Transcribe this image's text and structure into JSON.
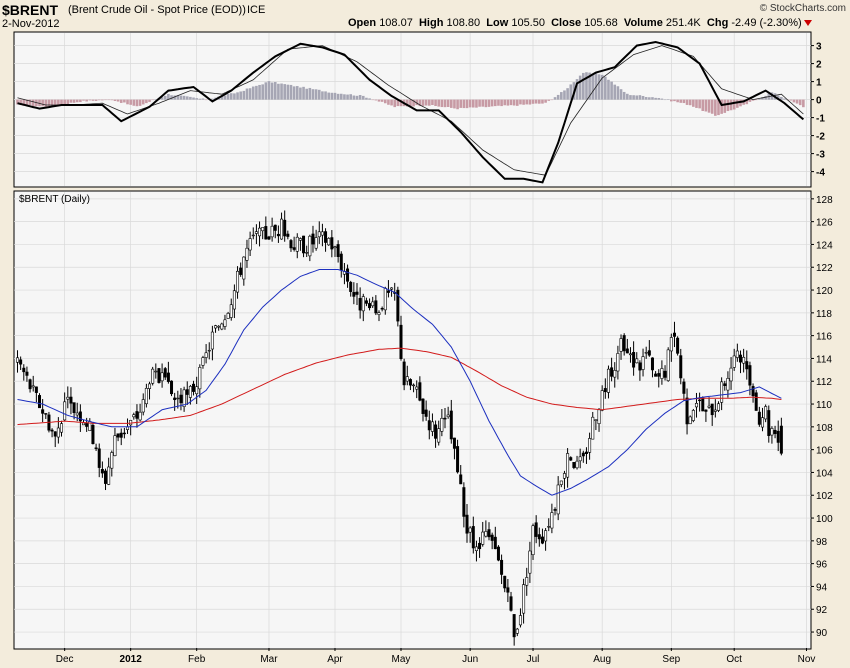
{
  "header": {
    "symbol": "$BRENT",
    "description": "(Brent Crude Oil - Spot Price (EOD))",
    "exchange": "ICE",
    "source": "© StockCharts.com",
    "date": "2-Nov-2012",
    "open_label": "Open",
    "open": "108.07",
    "high_label": "High",
    "high": "108.80",
    "low_label": "Low",
    "low": "105.50",
    "close_label": "Close",
    "close": "105.68",
    "volume_label": "Volume",
    "volume": "251.4K",
    "chg_label": "Chg",
    "chg": "-2.49 (-2.30%)",
    "down_marker_color": "#cc0000"
  },
  "price_panel_label": "$BRENT (Daily)",
  "colors": {
    "background": "#f3ecdc",
    "plot_bg": "#f6f6f6",
    "grid": "#d9d9d9",
    "ma_short": "#1c2fbf",
    "ma_long": "#d21a1a",
    "hist_pos": "#a6a6b4",
    "hist_neg": "#c79aa4"
  },
  "chart_data": [
    {
      "type": "line",
      "panel": "indicator",
      "ylim": [
        -4.8,
        3.7
      ],
      "yticks": [
        3,
        2,
        1,
        0,
        -1,
        -2,
        -3,
        -4
      ],
      "series": [
        {
          "role": "line",
          "anchors": [
            [
              0,
              -0.2
            ],
            [
              7,
              -0.5
            ],
            [
              14,
              -0.3
            ],
            [
              20,
              -0.3
            ],
            [
              27,
              -0.3
            ],
            [
              33,
              -1.2
            ],
            [
              42,
              -0.4
            ],
            [
              48,
              0.5
            ],
            [
              56,
              0.7
            ],
            [
              62,
              -0.1
            ],
            [
              68,
              0.5
            ],
            [
              75,
              1.5
            ],
            [
              82,
              2.4
            ],
            [
              90,
              3.1
            ],
            [
              97,
              2.9
            ],
            [
              104,
              2.5
            ],
            [
              112,
              1.1
            ],
            [
              119,
              0.2
            ],
            [
              127,
              -0.6
            ],
            [
              134,
              -0.6
            ],
            [
              141,
              -1.8
            ],
            [
              148,
              -3.2
            ],
            [
              155,
              -4.4
            ],
            [
              161,
              -4.4
            ],
            [
              167,
              -4.6
            ],
            [
              172,
              -2.4
            ],
            [
              178,
              0.9
            ],
            [
              184,
              1.5
            ],
            [
              190,
              1.8
            ],
            [
              197,
              3.0
            ],
            [
              203,
              3.2
            ],
            [
              210,
              2.9
            ],
            [
              217,
              2.0
            ],
            [
              224,
              -0.3
            ],
            [
              231,
              -0.1
            ],
            [
              238,
              0.5
            ],
            [
              244,
              -0.2
            ],
            [
              250,
              -1.1
            ]
          ]
        },
        {
          "role": "signal",
          "anchors": [
            [
              0,
              0.1
            ],
            [
              9,
              -0.3
            ],
            [
              18,
              -0.3
            ],
            [
              27,
              -0.2
            ],
            [
              35,
              -0.8
            ],
            [
              45,
              -0.2
            ],
            [
              55,
              0.5
            ],
            [
              65,
              0.3
            ],
            [
              75,
              1.1
            ],
            [
              86,
              2.8
            ],
            [
              97,
              3.0
            ],
            [
              108,
              2.1
            ],
            [
              118,
              0.8
            ],
            [
              128,
              -0.3
            ],
            [
              138,
              -1.2
            ],
            [
              148,
              -2.8
            ],
            [
              158,
              -3.9
            ],
            [
              168,
              -4.2
            ],
            [
              176,
              -1.3
            ],
            [
              186,
              1.2
            ],
            [
              196,
              2.5
            ],
            [
              205,
              3.0
            ],
            [
              215,
              2.4
            ],
            [
              224,
              0.6
            ],
            [
              234,
              0.0
            ],
            [
              243,
              0.3
            ],
            [
              250,
              -0.8
            ]
          ]
        },
        {
          "role": "histogram",
          "anchors": [
            [
              0,
              -0.3
            ],
            [
              10,
              -0.4
            ],
            [
              20,
              -0.1
            ],
            [
              30,
              0.0
            ],
            [
              38,
              -0.4
            ],
            [
              48,
              0.3
            ],
            [
              60,
              0.0
            ],
            [
              70,
              0.4
            ],
            [
              80,
              1.0
            ],
            [
              90,
              0.7
            ],
            [
              100,
              0.4
            ],
            [
              110,
              0.2
            ],
            [
              120,
              -0.4
            ],
            [
              130,
              -0.3
            ],
            [
              140,
              -0.5
            ],
            [
              150,
              -0.4
            ],
            [
              160,
              -0.3
            ],
            [
              168,
              -0.2
            ],
            [
              174,
              0.5
            ],
            [
              180,
              1.5
            ],
            [
              186,
              1.4
            ],
            [
              194,
              0.3
            ],
            [
              204,
              0.1
            ],
            [
              214,
              -0.3
            ],
            [
              222,
              -0.9
            ],
            [
              230,
              -0.4
            ],
            [
              240,
              0.4
            ],
            [
              250,
              -0.4
            ]
          ]
        }
      ]
    },
    {
      "type": "candlestick",
      "panel": "price",
      "title": "$BRENT (Daily)",
      "ylim": [
        88.6,
        128.6
      ],
      "yticks": [
        128,
        126,
        124,
        122,
        120,
        118,
        116,
        114,
        112,
        110,
        108,
        106,
        104,
        102,
        100,
        98,
        96,
        94,
        92,
        90
      ],
      "xticks": [
        {
          "i": 15,
          "label": "Dec"
        },
        {
          "i": 36,
          "label": "2012"
        },
        {
          "i": 57,
          "label": "Feb"
        },
        {
          "i": 80,
          "label": "Mar"
        },
        {
          "i": 101,
          "label": "Apr"
        },
        {
          "i": 122,
          "label": "May"
        },
        {
          "i": 144,
          "label": "Jun"
        },
        {
          "i": 164,
          "label": "Jul"
        },
        {
          "i": 186,
          "label": "Aug"
        },
        {
          "i": 208,
          "label": "Sep"
        },
        {
          "i": 228,
          "label": "Oct"
        },
        {
          "i": 251,
          "label": "Nov"
        }
      ],
      "close_anchors": [
        [
          0,
          114.0
        ],
        [
          5,
          111.0
        ],
        [
          9,
          109.0
        ],
        [
          12,
          107.0
        ],
        [
          15,
          110.0
        ],
        [
          19,
          109.5
        ],
        [
          22,
          108.5
        ],
        [
          25,
          106.5
        ],
        [
          26,
          104.0
        ],
        [
          28,
          103.5
        ],
        [
          31,
          107.0
        ],
        [
          35,
          108.0
        ],
        [
          38,
          109.0
        ],
        [
          40,
          110.0
        ],
        [
          42,
          112.5
        ],
        [
          46,
          112.0
        ],
        [
          50,
          110.5
        ],
        [
          54,
          110.5
        ],
        [
          58,
          112.5
        ],
        [
          62,
          116.0
        ],
        [
          66,
          118.0
        ],
        [
          69,
          120.0
        ],
        [
          72,
          123.0
        ],
        [
          75,
          124.5
        ],
        [
          80,
          125.0
        ],
        [
          84,
          125.5
        ],
        [
          88,
          124.0
        ],
        [
          92,
          124.0
        ],
        [
          96,
          124.5
        ],
        [
          99,
          124.5
        ],
        [
          102,
          123.0
        ],
        [
          105,
          121.0
        ],
        [
          108,
          119.0
        ],
        [
          111,
          118.5
        ],
        [
          114,
          118.0
        ],
        [
          117,
          119.5
        ],
        [
          120,
          119.5
        ],
        [
          121,
          117.0
        ],
        [
          123,
          112.0
        ],
        [
          126,
          111.5
        ],
        [
          130,
          109.0
        ],
        [
          133,
          107.5
        ],
        [
          137,
          108.5
        ],
        [
          140,
          104.0
        ],
        [
          143,
          99.0
        ],
        [
          146,
          97.0
        ],
        [
          149,
          98.5
        ],
        [
          152,
          97.0
        ],
        [
          155,
          94.0
        ],
        [
          157,
          91.5
        ],
        [
          158,
          89.5
        ],
        [
          160,
          92.0
        ],
        [
          162,
          95.5
        ],
        [
          164,
          99.0
        ],
        [
          167,
          98.5
        ],
        [
          170,
          100.5
        ],
        [
          173,
          103.0
        ],
        [
          175,
          106.0
        ],
        [
          178,
          104.5
        ],
        [
          180,
          105.0
        ],
        [
          183,
          108.5
        ],
        [
          186,
          111.0
        ],
        [
          189,
          113.0
        ],
        [
          192,
          115.0
        ],
        [
          195,
          114.0
        ],
        [
          198,
          113.5
        ],
        [
          200,
          114.5
        ],
        [
          203,
          112.0
        ],
        [
          206,
          113.0
        ],
        [
          209,
          116.5
        ],
        [
          211,
          112.5
        ],
        [
          213,
          109.0
        ],
        [
          216,
          110.5
        ],
        [
          219,
          109.0
        ],
        [
          222,
          110.0
        ],
        [
          225,
          112.0
        ],
        [
          228,
          114.0
        ],
        [
          230,
          114.0
        ],
        [
          233,
          112.0
        ],
        [
          234,
          110.0
        ],
        [
          236,
          109.0
        ],
        [
          238,
          109.5
        ],
        [
          239,
          107.8
        ],
        [
          241,
          108.07
        ],
        [
          243,
          105.68
        ]
      ],
      "last_candle": {
        "open": 108.07,
        "high": 108.8,
        "low": 105.5,
        "close": 105.68
      },
      "series": [
        {
          "role": "ma_short",
          "anchors": [
            [
              0,
              110.4
            ],
            [
              8,
              110.0
            ],
            [
              16,
              109.0
            ],
            [
              24,
              108.4
            ],
            [
              30,
              108.0
            ],
            [
              38,
              108.0
            ],
            [
              46,
              109.5
            ],
            [
              54,
              110.0
            ],
            [
              60,
              111.2
            ],
            [
              66,
              113.5
            ],
            [
              72,
              116.5
            ],
            [
              78,
              118.5
            ],
            [
              84,
              120.0
            ],
            [
              90,
              121.2
            ],
            [
              96,
              121.8
            ],
            [
              102,
              121.8
            ],
            [
              108,
              121.3
            ],
            [
              114,
              120.5
            ],
            [
              120,
              119.8
            ],
            [
              126,
              118.3
            ],
            [
              132,
              117.0
            ],
            [
              138,
              115.0
            ],
            [
              144,
              112.0
            ],
            [
              150,
              108.5
            ],
            [
              156,
              105.5
            ],
            [
              160,
              103.7
            ],
            [
              165,
              102.8
            ],
            [
              170,
              102.0
            ],
            [
              176,
              102.6
            ],
            [
              182,
              103.5
            ],
            [
              188,
              104.5
            ],
            [
              194,
              106.0
            ],
            [
              200,
              107.8
            ],
            [
              206,
              109.2
            ],
            [
              212,
              110.3
            ],
            [
              218,
              110.6
            ],
            [
              224,
              110.8
            ],
            [
              230,
              111.0
            ],
            [
              236,
              111.5
            ],
            [
              243,
              110.5
            ]
          ]
        },
        {
          "role": "ma_long",
          "anchors": [
            [
              0,
              108.2
            ],
            [
              15,
              108.5
            ],
            [
              25,
              108.3
            ],
            [
              35,
              108.3
            ],
            [
              45,
              108.6
            ],
            [
              55,
              109.0
            ],
            [
              65,
              110.0
            ],
            [
              75,
              111.3
            ],
            [
              85,
              112.6
            ],
            [
              95,
              113.6
            ],
            [
              105,
              114.3
            ],
            [
              115,
              114.8
            ],
            [
              122,
              114.9
            ],
            [
              130,
              114.6
            ],
            [
              138,
              114.1
            ],
            [
              146,
              112.9
            ],
            [
              154,
              111.6
            ],
            [
              162,
              110.6
            ],
            [
              170,
              110.0
            ],
            [
              178,
              109.7
            ],
            [
              186,
              109.5
            ],
            [
              194,
              109.8
            ],
            [
              202,
              110.1
            ],
            [
              210,
              110.4
            ],
            [
              218,
              110.5
            ],
            [
              226,
              110.5
            ],
            [
              234,
              110.6
            ],
            [
              240,
              110.5
            ],
            [
              243,
              110.4
            ]
          ]
        }
      ]
    }
  ]
}
